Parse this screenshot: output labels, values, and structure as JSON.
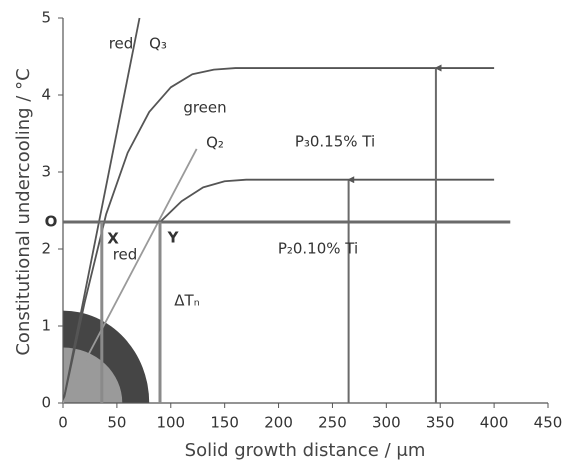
{
  "chart_data": {
    "type": "line",
    "x_label": "Solid growth distance / μm",
    "y_label": "Constitutional undercooling / °C",
    "xlim": [
      0,
      450
    ],
    "ylim": [
      0,
      5
    ],
    "xticks": [
      0,
      50,
      100,
      150,
      200,
      250,
      300,
      350,
      400,
      450
    ],
    "yticks": [
      0,
      1,
      2,
      3,
      4,
      5
    ],
    "regions": [
      {
        "rx": 80,
        "ry": 1.2,
        "color": "#454545"
      },
      {
        "rx": 55,
        "ry": 0.72,
        "color": "#9a9a9a"
      }
    ],
    "series": [
      {
        "color": "#555555",
        "x": [
          0,
          20,
          40,
          60,
          80,
          100,
          120,
          140,
          160,
          400
        ],
        "values": [
          0,
          1.3,
          2.45,
          3.25,
          3.78,
          4.1,
          4.27,
          4.33,
          4.35,
          4.35
        ]
      },
      {
        "color": "#555555",
        "x": [
          90,
          110,
          130,
          150,
          170,
          400
        ],
        "values": [
          2.35,
          2.62,
          2.8,
          2.88,
          2.9,
          2.9
        ]
      },
      {
        "color": "#555555",
        "x": [
          0,
          71
        ],
        "values": [
          0,
          5
        ]
      },
      {
        "color": "#9a9a9a",
        "x": [
          0,
          124
        ],
        "values": [
          0,
          3.3
        ]
      },
      {
        "color": "#6a6a6a",
        "x": [
          0,
          415
        ],
        "values": [
          2.35,
          2.35
        ]
      },
      {
        "color": "#8a8a8a",
        "x": [
          36,
          36
        ],
        "values": [
          0,
          2.35
        ]
      },
      {
        "color": "#8a8a8a",
        "x": [
          90,
          90
        ],
        "values": [
          0,
          2.35
        ]
      },
      {
        "color": "#6a6a6a",
        "x": [
          265,
          265
        ],
        "values": [
          0,
          2.9
        ],
        "arrow": true
      },
      {
        "color": "#6a6a6a",
        "x": [
          346,
          346
        ],
        "values": [
          0,
          4.35
        ],
        "arrow": true
      }
    ],
    "annotations": [
      "red",
      "Q₃",
      "green",
      "Q₂",
      "P₃0.15% Ti",
      "red",
      "P₂0.10% Ti",
      "ΔTₙ",
      "O",
      "X",
      "Y"
    ]
  }
}
